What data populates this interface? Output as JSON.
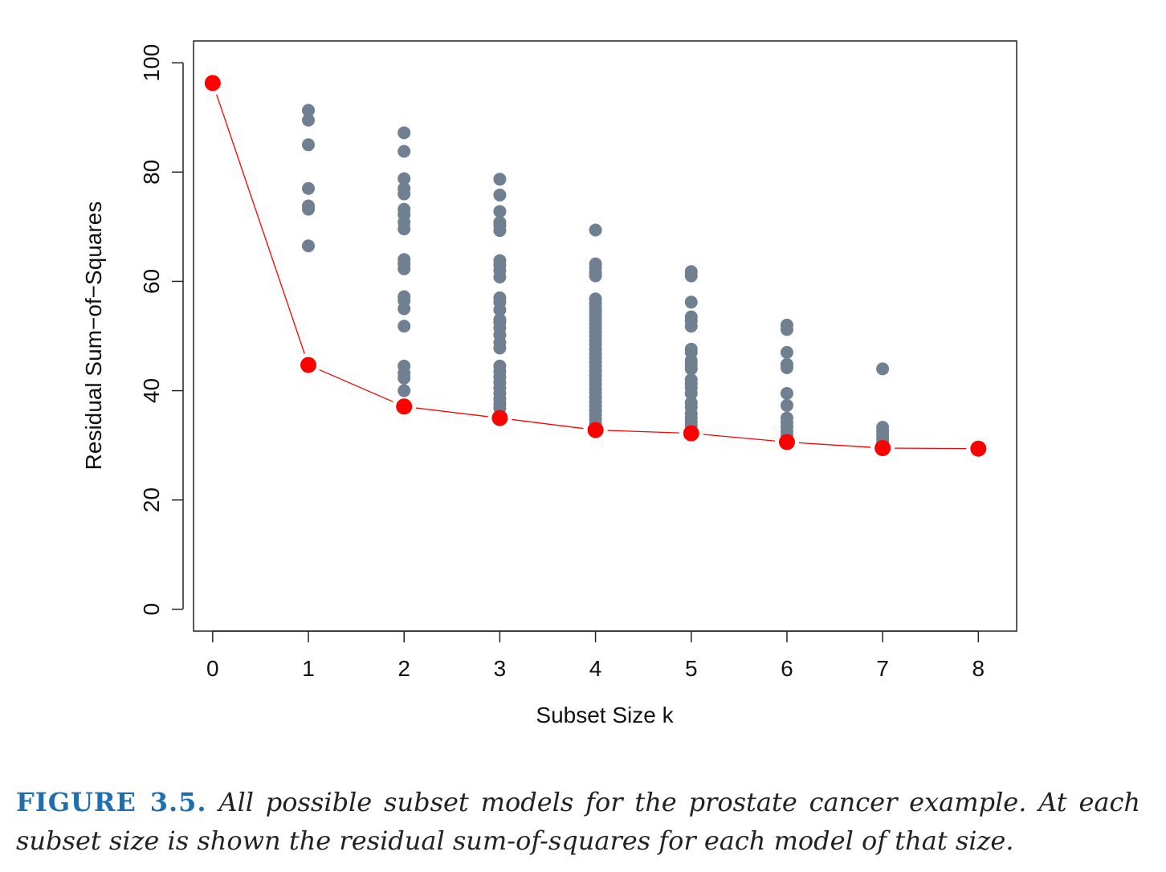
{
  "chart_data": {
    "type": "scatter",
    "title": "",
    "xlabel": "Subset Size k",
    "ylabel": "Residual Sum−of−Squares",
    "xlim": [
      -0.2,
      8.4
    ],
    "ylim": [
      -4,
      104
    ],
    "x_ticks": [
      "0",
      "1",
      "2",
      "3",
      "4",
      "5",
      "6",
      "7",
      "8"
    ],
    "y_ticks": [
      "0",
      "20",
      "40",
      "60",
      "80",
      "100"
    ],
    "grid": false,
    "colors": {
      "all_models": "#708090",
      "best_subset": "#ff0000",
      "line": "#ff0000"
    },
    "series": [
      {
        "points": [
          [
            1,
            91.3
          ],
          [
            1,
            89.5
          ],
          [
            1,
            85.0
          ],
          [
            1,
            77.0
          ],
          [
            1,
            73.8
          ],
          [
            1,
            73.2
          ],
          [
            1,
            66.5
          ],
          [
            2,
            87.2
          ],
          [
            2,
            83.8
          ],
          [
            2,
            78.8
          ],
          [
            2,
            77.0
          ],
          [
            2,
            76.0
          ],
          [
            2,
            73.2
          ],
          [
            2,
            72.2
          ],
          [
            2,
            70.8
          ],
          [
            2,
            69.6
          ],
          [
            2,
            64.0
          ],
          [
            2,
            63.2
          ],
          [
            2,
            62.3
          ],
          [
            2,
            57.2
          ],
          [
            2,
            56.5
          ],
          [
            2,
            55.0
          ],
          [
            2,
            51.8
          ],
          [
            2,
            44.5
          ],
          [
            2,
            43.2
          ],
          [
            2,
            42.3
          ],
          [
            2,
            40.0
          ],
          [
            3,
            78.7
          ],
          [
            3,
            75.8
          ],
          [
            3,
            72.8
          ],
          [
            3,
            70.8
          ],
          [
            3,
            70.2
          ],
          [
            3,
            69.3
          ],
          [
            3,
            63.8
          ],
          [
            3,
            63.0
          ],
          [
            3,
            62.0
          ],
          [
            3,
            60.8
          ],
          [
            3,
            57.0
          ],
          [
            3,
            56.2
          ],
          [
            3,
            54.8
          ],
          [
            3,
            53.0
          ],
          [
            3,
            52.5
          ],
          [
            3,
            51.5
          ],
          [
            3,
            50.2
          ],
          [
            3,
            48.8
          ],
          [
            3,
            47.8
          ],
          [
            3,
            44.5
          ],
          [
            3,
            43.5
          ],
          [
            3,
            42.5
          ],
          [
            3,
            41.5
          ],
          [
            3,
            40.5
          ],
          [
            3,
            39.5
          ],
          [
            3,
            38.5
          ],
          [
            3,
            37.6
          ],
          [
            3,
            36.8
          ],
          [
            3,
            35.5
          ],
          [
            4,
            69.4
          ],
          [
            4,
            63.2
          ],
          [
            4,
            62.5
          ],
          [
            4,
            61.6
          ],
          [
            4,
            61.0
          ],
          [
            4,
            56.8
          ],
          [
            4,
            56.0
          ],
          [
            4,
            55.2
          ],
          [
            4,
            54.5
          ],
          [
            4,
            53.8
          ],
          [
            4,
            53.0
          ],
          [
            4,
            52.2
          ],
          [
            4,
            51.5
          ],
          [
            4,
            50.8
          ],
          [
            4,
            50.0
          ],
          [
            4,
            49.2
          ],
          [
            4,
            48.4
          ],
          [
            4,
            47.6
          ],
          [
            4,
            46.8
          ],
          [
            4,
            46.0
          ],
          [
            4,
            45.2
          ],
          [
            4,
            44.4
          ],
          [
            4,
            43.6
          ],
          [
            4,
            42.8
          ],
          [
            4,
            42.0
          ],
          [
            4,
            41.2
          ],
          [
            4,
            40.4
          ],
          [
            4,
            39.6
          ],
          [
            4,
            38.8
          ],
          [
            4,
            38.0
          ],
          [
            4,
            37.2
          ],
          [
            4,
            36.4
          ],
          [
            4,
            35.6
          ],
          [
            4,
            34.8
          ],
          [
            4,
            34.0
          ],
          [
            5,
            61.8
          ],
          [
            5,
            61.0
          ],
          [
            5,
            56.2
          ],
          [
            5,
            53.5
          ],
          [
            5,
            52.8
          ],
          [
            5,
            51.8
          ],
          [
            5,
            47.6
          ],
          [
            5,
            47.0
          ],
          [
            5,
            45.5
          ],
          [
            5,
            44.8
          ],
          [
            5,
            44.0
          ],
          [
            5,
            42.0
          ],
          [
            5,
            41.3
          ],
          [
            5,
            40.5
          ],
          [
            5,
            39.5
          ],
          [
            5,
            37.8
          ],
          [
            5,
            37.0
          ],
          [
            5,
            35.8
          ],
          [
            5,
            35.0
          ],
          [
            5,
            34.3
          ],
          [
            5,
            33.6
          ],
          [
            6,
            52.0
          ],
          [
            6,
            51.2
          ],
          [
            6,
            47.0
          ],
          [
            6,
            44.8
          ],
          [
            6,
            44.2
          ],
          [
            6,
            39.5
          ],
          [
            6,
            37.3
          ],
          [
            6,
            35.0
          ],
          [
            6,
            34.2
          ],
          [
            6,
            33.4
          ],
          [
            6,
            32.6
          ],
          [
            6,
            31.8
          ],
          [
            7,
            44.0
          ],
          [
            7,
            33.3
          ],
          [
            7,
            32.6
          ],
          [
            7,
            31.9
          ],
          [
            7,
            31.2
          ],
          [
            7,
            30.5
          ]
        ]
      },
      {
        "points": [
          [
            0,
            96.3
          ],
          [
            1,
            44.7
          ],
          [
            2,
            37.1
          ],
          [
            3,
            35.0
          ],
          [
            4,
            32.8
          ],
          [
            5,
            32.2
          ],
          [
            6,
            30.6
          ],
          [
            7,
            29.5
          ],
          [
            8,
            29.4
          ]
        ]
      }
    ]
  },
  "caption": {
    "label": "FIGURE 3.5.",
    "text": "All possible subset models for the prostate cancer example. At each subset size is shown the residual sum-of-squares for each model of that size."
  }
}
